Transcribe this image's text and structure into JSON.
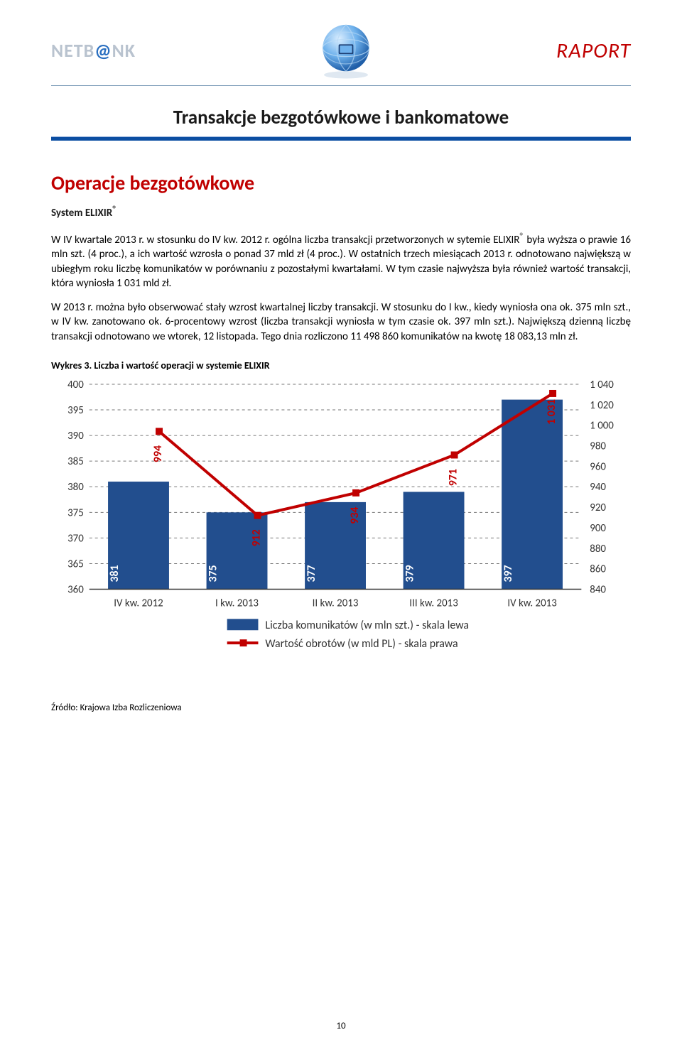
{
  "header": {
    "logo_pre": "NETB",
    "logo_at": "@",
    "logo_post": "NK",
    "raport": "RAPORT"
  },
  "title": "Transakcje bezgotówkowe i bankomatowe",
  "section_heading": "Operacje bezgotówkowe",
  "subheading": "System ELIXIR",
  "sup_r": "®",
  "para1_a": "W IV kwartale 2013 r. w stosunku do IV kw. 2012 r. ogólna liczba transakcji przetworzonych w sytemie ELIXIR",
  "para1_b": " była wyższa o prawie 16 mln szt. (4 proc.), a ich wartość wzrosła o ponad 37 mld zł (4 proc.). W ostatnich trzech miesiącach 2013 r. odnotowano największą w ubiegłym roku liczbę komunikatów w porównaniu z pozostałymi kwartałami. W tym czasie najwyższa była również wartość transakcji, która wyniosła 1 031 mld zł.",
  "para2": "W 2013 r. można było obserwować stały wzrost kwartalnej liczby transakcji. W stosunku do I kw., kiedy wyniosła ona ok. 375 mln szt., w IV kw. zanotowano ok. 6-procentowy wzrost (liczba transakcji wyniosła w tym czasie ok. 397 mln szt.). Największą dzienną liczbę transakcji odnotowano we wtorek, 12 listopada. Tego dnia rozliczono 11 498 860 komunikatów na kwotę 18 083,13 mln zł.",
  "chart_caption": "Wykres 3. Liczba i wartość operacji w systemie ELIXIR",
  "chart": {
    "type": "bar+line",
    "categories": [
      "IV kw. 2012",
      "I kw. 2013",
      "II kw. 2013",
      "III kw. 2013",
      "IV kw. 2013"
    ],
    "bar_values": [
      381,
      375,
      377,
      379,
      397
    ],
    "bar_labels": [
      "381",
      "375",
      "377",
      "379",
      "397"
    ],
    "line_values": [
      994,
      912,
      934,
      971,
      1031
    ],
    "line_labels": [
      "994",
      "912",
      "934",
      "971",
      "1 031"
    ],
    "left_axis": {
      "min": 360,
      "max": 400,
      "step": 5,
      "ticks": [
        360,
        365,
        370,
        375,
        380,
        385,
        390,
        395,
        400
      ]
    },
    "right_axis": {
      "min": 840,
      "max": 1040,
      "step": 20,
      "ticks": [
        840,
        860,
        880,
        900,
        920,
        940,
        960,
        980,
        1000,
        1020,
        1040
      ]
    },
    "right_tick_labels": [
      "840",
      "860",
      "880",
      "900",
      "920",
      "940",
      "960",
      "980",
      "1 000",
      "1 020",
      "1 040"
    ],
    "bar_color": "#224e8e",
    "line_color": "#c00000",
    "grid_color": "#777777",
    "bar_label_color": "#ffffff",
    "legend": {
      "bar": "Liczba komunikatów (w mln szt.) - skala lewa",
      "line": "Wartość obrotów (w mld PL) - skala prawa"
    },
    "line_label_fill": "#c00000"
  },
  "source": "Źródło: Krajowa Izba Rozliczeniowa",
  "page_number": "10"
}
